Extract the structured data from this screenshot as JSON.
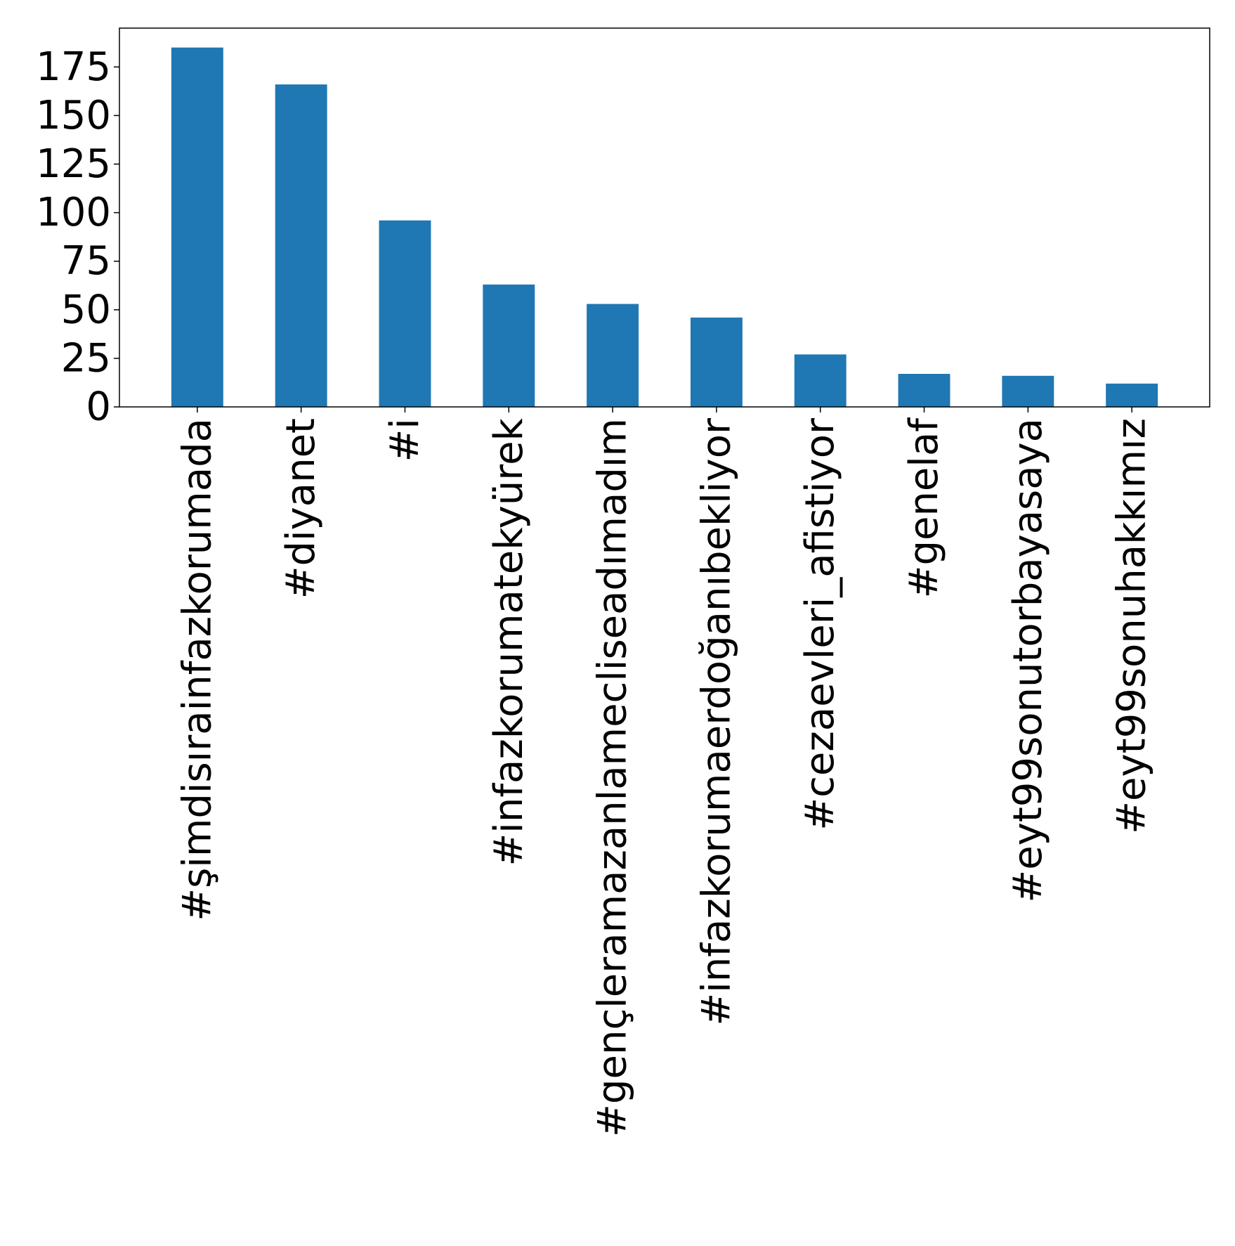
{
  "chart_data": {
    "type": "bar",
    "title": "",
    "xlabel": "",
    "ylabel": "",
    "categories": [
      "#şimdisırainfazkorumada",
      "#diyanet",
      "#i",
      "#infazkorumatekyürek",
      "#gençleramazanlamecliseadımadım",
      "#infazkorumaerdoğanıbekliyor",
      "#cezaevleri_afistiyor",
      "#genelaf",
      "#eyt99sonutorbayasaya",
      "#eyt99sonuhakkımız"
    ],
    "values": [
      185,
      166,
      96,
      63,
      53,
      46,
      27,
      17,
      16,
      12
    ],
    "ylim": [
      0,
      195
    ],
    "yticks": [
      0,
      25,
      50,
      75,
      100,
      125,
      150,
      175
    ],
    "grid": false,
    "bar_color": "#1f77b4"
  }
}
